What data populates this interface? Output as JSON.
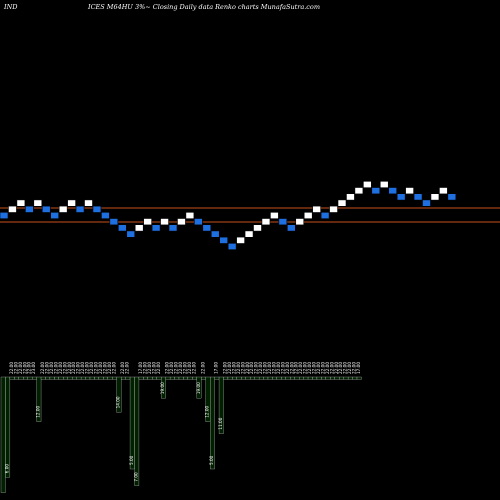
{
  "header": {
    "left": "IND",
    "center": "ICES M64HU 3%~  Closing Daily data  Renko  charts MunafaSutra.com"
  },
  "chart_data": {
    "type": "renko",
    "reference_lines": [
      0.6,
      0.4
    ],
    "bricks": [
      {
        "dir": "down",
        "level": 0
      },
      {
        "dir": "up",
        "level": 1
      },
      {
        "dir": "up",
        "level": 2
      },
      {
        "dir": "down",
        "level": 1
      },
      {
        "dir": "up",
        "level": 2
      },
      {
        "dir": "down",
        "level": 1
      },
      {
        "dir": "down",
        "level": 0
      },
      {
        "dir": "up",
        "level": 1
      },
      {
        "dir": "up",
        "level": 2
      },
      {
        "dir": "down",
        "level": 1
      },
      {
        "dir": "up",
        "level": 2
      },
      {
        "dir": "down",
        "level": 1
      },
      {
        "dir": "down",
        "level": 0
      },
      {
        "dir": "down",
        "level": -1
      },
      {
        "dir": "down",
        "level": -2
      },
      {
        "dir": "down",
        "level": -3
      },
      {
        "dir": "up",
        "level": -2
      },
      {
        "dir": "up",
        "level": -1
      },
      {
        "dir": "down",
        "level": -2
      },
      {
        "dir": "up",
        "level": -1
      },
      {
        "dir": "down",
        "level": -2
      },
      {
        "dir": "up",
        "level": -1
      },
      {
        "dir": "up",
        "level": 0
      },
      {
        "dir": "down",
        "level": -1
      },
      {
        "dir": "down",
        "level": -2
      },
      {
        "dir": "down",
        "level": -3
      },
      {
        "dir": "down",
        "level": -4
      },
      {
        "dir": "down",
        "level": -5
      },
      {
        "dir": "up",
        "level": -4
      },
      {
        "dir": "up",
        "level": -3
      },
      {
        "dir": "up",
        "level": -2
      },
      {
        "dir": "up",
        "level": -1
      },
      {
        "dir": "up",
        "level": 0
      },
      {
        "dir": "down",
        "level": -1
      },
      {
        "dir": "down",
        "level": -2
      },
      {
        "dir": "up",
        "level": -1
      },
      {
        "dir": "up",
        "level": 0
      },
      {
        "dir": "up",
        "level": 1
      },
      {
        "dir": "down",
        "level": 0
      },
      {
        "dir": "up",
        "level": 1
      },
      {
        "dir": "up",
        "level": 2
      },
      {
        "dir": "up",
        "level": 3
      },
      {
        "dir": "up",
        "level": 4
      },
      {
        "dir": "up",
        "level": 5
      },
      {
        "dir": "down",
        "level": 4
      },
      {
        "dir": "up",
        "level": 5
      },
      {
        "dir": "down",
        "level": 4
      },
      {
        "dir": "down",
        "level": 3
      },
      {
        "dir": "up",
        "level": 4
      },
      {
        "dir": "down",
        "level": 3
      },
      {
        "dir": "down",
        "level": 2
      },
      {
        "dir": "up",
        "level": 3
      },
      {
        "dir": "up",
        "level": 4
      },
      {
        "dir": "down",
        "level": 3
      }
    ],
    "volume": [
      {
        "label": "",
        "value": 0.98
      },
      {
        "label": "6.00",
        "value": 0.85
      },
      {
        "label": "22.00",
        "value": 0.02
      },
      {
        "label": "22.00",
        "value": 0.02
      },
      {
        "label": "22.00",
        "value": 0.02
      },
      {
        "label": "22.00",
        "value": 0.02
      },
      {
        "label": "22.00",
        "value": 0.02
      },
      {
        "label": "23.00",
        "value": 0.02
      },
      {
        "label": "12.00",
        "value": 0.38
      },
      {
        "label": "22.00",
        "value": 0.02
      },
      {
        "label": "22.00",
        "value": 0.02
      },
      {
        "label": "22.00",
        "value": 0.02
      },
      {
        "label": "22.00",
        "value": 0.02
      },
      {
        "label": "22.00",
        "value": 0.02
      },
      {
        "label": "22.00",
        "value": 0.02
      },
      {
        "label": "22.00",
        "value": 0.02
      },
      {
        "label": "22.00",
        "value": 0.02
      },
      {
        "label": "22.00",
        "value": 0.02
      },
      {
        "label": "22.00",
        "value": 0.02
      },
      {
        "label": "22.00",
        "value": 0.02
      },
      {
        "label": "22.00",
        "value": 0.02
      },
      {
        "label": "22.00",
        "value": 0.02
      },
      {
        "label": "22.00",
        "value": 0.02
      },
      {
        "label": "22.00",
        "value": 0.02
      },
      {
        "label": "22.00",
        "value": 0.02
      },
      {
        "label": "22.00",
        "value": 0.02
      },
      {
        "label": "14.00",
        "value": 0.3
      },
      {
        "label": "22.00",
        "value": 0.02
      },
      {
        "label": "22.00",
        "value": 0.02
      },
      {
        "label": "5.00",
        "value": 0.78
      },
      {
        "label": "7.00",
        "value": 0.92
      },
      {
        "label": "17.00",
        "value": 0.02
      },
      {
        "label": "22.00",
        "value": 0.02
      },
      {
        "label": "22.00",
        "value": 0.02
      },
      {
        "label": "22.00",
        "value": 0.02
      },
      {
        "label": "22.00",
        "value": 0.02
      },
      {
        "label": "19.00",
        "value": 0.18
      },
      {
        "label": "22.00",
        "value": 0.02
      },
      {
        "label": "22.00",
        "value": 0.02
      },
      {
        "label": "22.00",
        "value": 0.02
      },
      {
        "label": "22.00",
        "value": 0.02
      },
      {
        "label": "22.00",
        "value": 0.02
      },
      {
        "label": "22.00",
        "value": 0.02
      },
      {
        "label": "22.00",
        "value": 0.02
      },
      {
        "label": "19.00",
        "value": 0.18
      },
      {
        "label": "22.00",
        "value": 0.02
      },
      {
        "label": "12.00",
        "value": 0.38
      },
      {
        "label": "5.00",
        "value": 0.78
      },
      {
        "label": "17.00",
        "value": 0.02
      },
      {
        "label": "11.00",
        "value": 0.48
      },
      {
        "label": "22.00",
        "value": 0.02
      },
      {
        "label": "22.00",
        "value": 0.02
      },
      {
        "label": "22.00",
        "value": 0.02
      },
      {
        "label": "22.00",
        "value": 0.02
      },
      {
        "label": "22.00",
        "value": 0.02
      },
      {
        "label": "22.00",
        "value": 0.02
      },
      {
        "label": "22.00",
        "value": 0.02
      },
      {
        "label": "22.00",
        "value": 0.02
      },
      {
        "label": "22.00",
        "value": 0.02
      },
      {
        "label": "22.00",
        "value": 0.02
      },
      {
        "label": "22.00",
        "value": 0.02
      },
      {
        "label": "22.00",
        "value": 0.02
      },
      {
        "label": "22.00",
        "value": 0.02
      },
      {
        "label": "22.00",
        "value": 0.02
      },
      {
        "label": "22.00",
        "value": 0.02
      },
      {
        "label": "22.00",
        "value": 0.02
      },
      {
        "label": "22.00",
        "value": 0.02
      },
      {
        "label": "22.00",
        "value": 0.02
      },
      {
        "label": "22.00",
        "value": 0.02
      },
      {
        "label": "22.00",
        "value": 0.02
      },
      {
        "label": "22.00",
        "value": 0.02
      },
      {
        "label": "22.00",
        "value": 0.02
      },
      {
        "label": "22.00",
        "value": 0.02
      },
      {
        "label": "22.00",
        "value": 0.02
      },
      {
        "label": "22.00",
        "value": 0.02
      },
      {
        "label": "22.00",
        "value": 0.02
      },
      {
        "label": "22.00",
        "value": 0.02
      },
      {
        "label": "22.00",
        "value": 0.02
      },
      {
        "label": "22.00",
        "value": 0.02
      },
      {
        "label": "22.00",
        "value": 0.02
      },
      {
        "label": "17.00",
        "value": 0.02
      }
    ]
  },
  "colors": {
    "background": "#000000",
    "brick_up": "#ffffff",
    "brick_down": "#1e6fe0",
    "brick_outline": "#000000",
    "reference_line": "#c8501e",
    "volume_fill": "#002000",
    "volume_stroke": "#ffffff"
  }
}
